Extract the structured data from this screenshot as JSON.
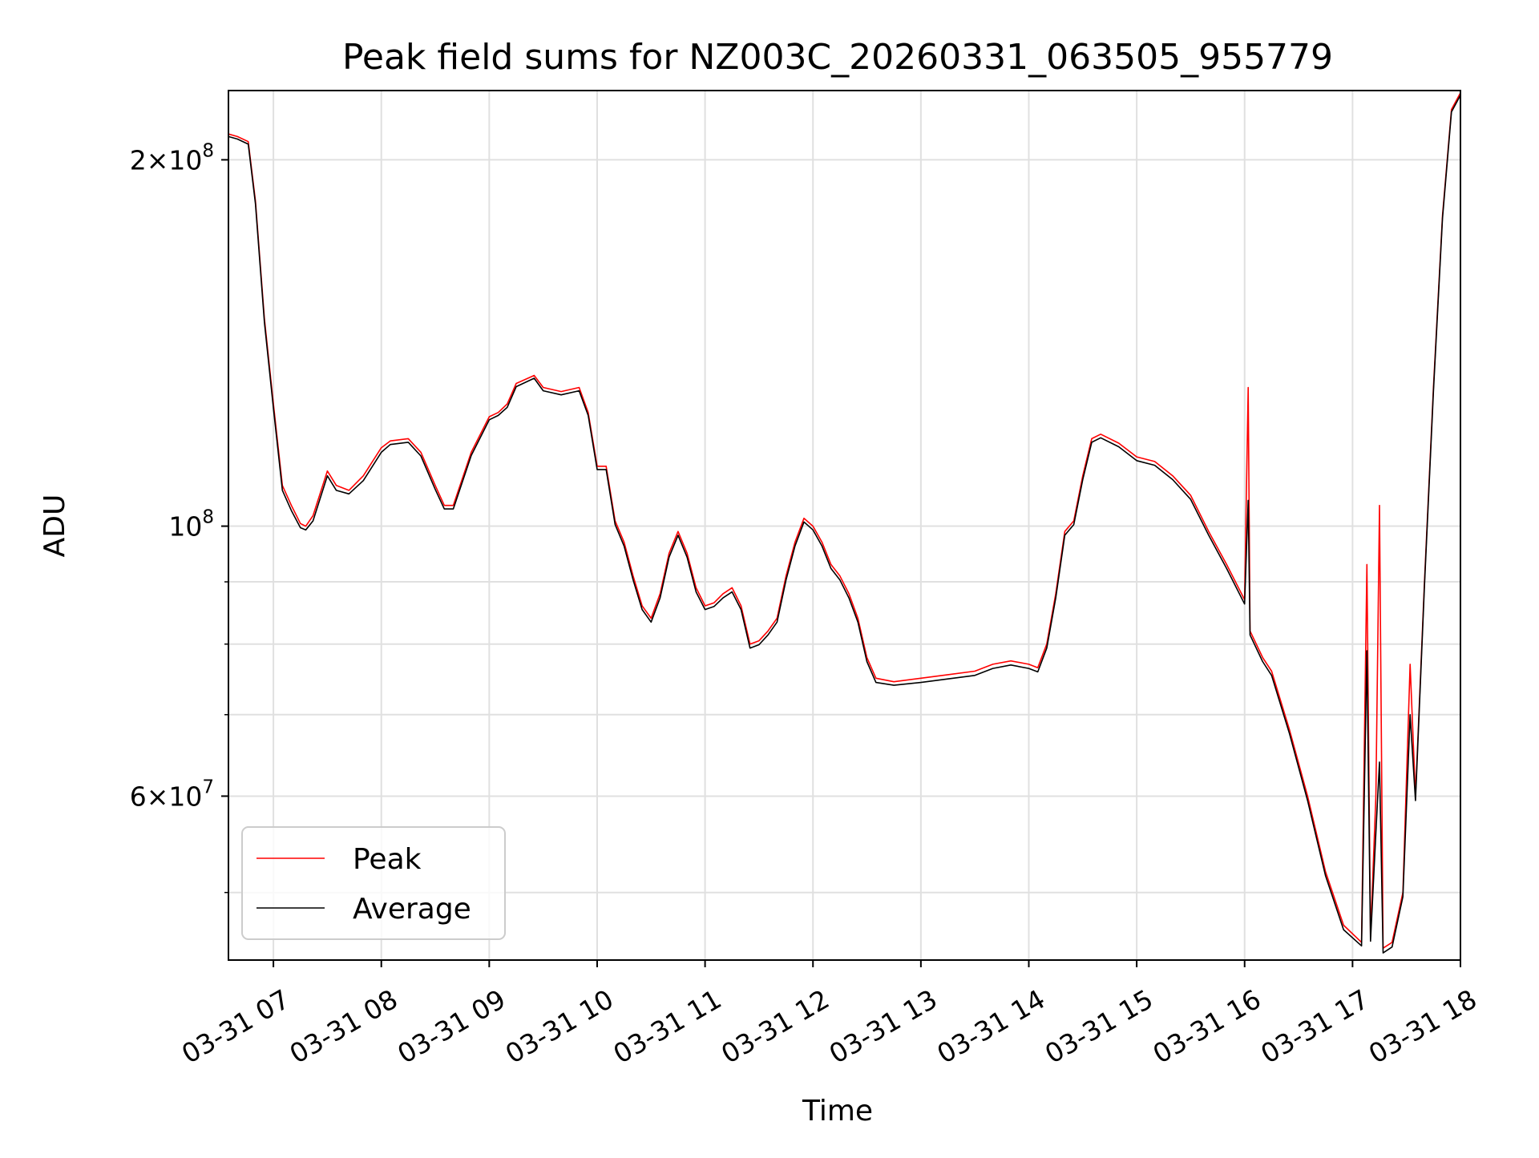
{
  "chart_data": {
    "type": "line",
    "title": "Peak field sums for NZ003C_20260331_063505_955779",
    "xlabel": "Time",
    "ylabel": "ADU",
    "yscale": "log",
    "grid": true,
    "legend_position": "lower-left",
    "xlim": [
      "2026-03-31 06:35",
      "2026-03-31 18:00"
    ],
    "ylim": [
      44000000,
      228000000
    ],
    "x_ticks": [
      {
        "value": "2026-03-31 07:00",
        "label": "03-31 07"
      },
      {
        "value": "2026-03-31 08:00",
        "label": "03-31 08"
      },
      {
        "value": "2026-03-31 09:00",
        "label": "03-31 09"
      },
      {
        "value": "2026-03-31 10:00",
        "label": "03-31 10"
      },
      {
        "value": "2026-03-31 11:00",
        "label": "03-31 11"
      },
      {
        "value": "2026-03-31 12:00",
        "label": "03-31 12"
      },
      {
        "value": "2026-03-31 13:00",
        "label": "03-31 13"
      },
      {
        "value": "2026-03-31 14:00",
        "label": "03-31 14"
      },
      {
        "value": "2026-03-31 15:00",
        "label": "03-31 15"
      },
      {
        "value": "2026-03-31 16:00",
        "label": "03-31 16"
      },
      {
        "value": "2026-03-31 17:00",
        "label": "03-31 17"
      },
      {
        "value": "2026-03-31 18:00",
        "label": "03-31 18"
      }
    ],
    "y_ticks_major": [
      {
        "value": 200000000,
        "mantissa": "2",
        "exponent": "8"
      },
      {
        "value": 100000000,
        "mantissa": "",
        "exponent": "8"
      },
      {
        "value": 60000000,
        "mantissa": "6",
        "exponent": "7"
      }
    ],
    "y_minor_gridlines": [
      50000000,
      70000000,
      80000000,
      90000000
    ],
    "series": [
      {
        "name": "Peak",
        "color": "#ff0000",
        "points": [
          [
            "2026-03-31 06:35",
            210000000
          ],
          [
            "2026-03-31 06:40",
            209000000
          ],
          [
            "2026-03-31 06:46",
            207000000
          ],
          [
            "2026-03-31 06:50",
            185000000
          ],
          [
            "2026-03-31 06:55",
            148000000
          ],
          [
            "2026-03-31 07:00",
            126000000
          ],
          [
            "2026-03-31 07:05",
            108000000
          ],
          [
            "2026-03-31 07:10",
            104000000
          ],
          [
            "2026-03-31 07:15",
            100500000
          ],
          [
            "2026-03-31 07:18",
            100000000
          ],
          [
            "2026-03-31 07:22",
            102000000
          ],
          [
            "2026-03-31 07:30",
            111000000
          ],
          [
            "2026-03-31 07:35",
            108000000
          ],
          [
            "2026-03-31 07:42",
            107000000
          ],
          [
            "2026-03-31 07:50",
            110000000
          ],
          [
            "2026-03-31 08:00",
            116000000
          ],
          [
            "2026-03-31 08:05",
            117500000
          ],
          [
            "2026-03-31 08:15",
            118000000
          ],
          [
            "2026-03-31 08:22",
            115000000
          ],
          [
            "2026-03-31 08:30",
            108000000
          ],
          [
            "2026-03-31 08:35",
            104000000
          ],
          [
            "2026-03-31 08:40",
            104000000
          ],
          [
            "2026-03-31 08:50",
            115000000
          ],
          [
            "2026-03-31 09:00",
            123000000
          ],
          [
            "2026-03-31 09:05",
            124000000
          ],
          [
            "2026-03-31 09:10",
            126000000
          ],
          [
            "2026-03-31 09:15",
            131000000
          ],
          [
            "2026-03-31 09:25",
            133000000
          ],
          [
            "2026-03-31 09:30",
            130000000
          ],
          [
            "2026-03-31 09:40",
            129000000
          ],
          [
            "2026-03-31 09:50",
            130000000
          ],
          [
            "2026-03-31 09:55",
            124000000
          ],
          [
            "2026-03-31 10:00",
            112000000
          ],
          [
            "2026-03-31 10:05",
            112000000
          ],
          [
            "2026-03-31 10:10",
            101000000
          ],
          [
            "2026-03-31 10:15",
            97000000
          ],
          [
            "2026-03-31 10:20",
            91000000
          ],
          [
            "2026-03-31 10:25",
            86000000
          ],
          [
            "2026-03-31 10:30",
            84000000
          ],
          [
            "2026-03-31 10:35",
            88000000
          ],
          [
            "2026-03-31 10:40",
            95000000
          ],
          [
            "2026-03-31 10:45",
            99000000
          ],
          [
            "2026-03-31 10:50",
            95000000
          ],
          [
            "2026-03-31 10:55",
            89000000
          ],
          [
            "2026-03-31 11:00",
            86000000
          ],
          [
            "2026-03-31 11:05",
            86500000
          ],
          [
            "2026-03-31 11:10",
            88000000
          ],
          [
            "2026-03-31 11:15",
            89000000
          ],
          [
            "2026-03-31 11:20",
            86000000
          ],
          [
            "2026-03-31 11:25",
            80000000
          ],
          [
            "2026-03-31 11:30",
            80500000
          ],
          [
            "2026-03-31 11:35",
            82000000
          ],
          [
            "2026-03-31 11:40",
            84000000
          ],
          [
            "2026-03-31 11:45",
            91000000
          ],
          [
            "2026-03-31 11:50",
            97000000
          ],
          [
            "2026-03-31 11:55",
            101500000
          ],
          [
            "2026-03-31 12:00",
            100000000
          ],
          [
            "2026-03-31 12:05",
            97000000
          ],
          [
            "2026-03-31 12:10",
            93000000
          ],
          [
            "2026-03-31 12:15",
            91000000
          ],
          [
            "2026-03-31 12:20",
            88000000
          ],
          [
            "2026-03-31 12:25",
            84000000
          ],
          [
            "2026-03-31 12:30",
            78000000
          ],
          [
            "2026-03-31 12:35",
            75000000
          ],
          [
            "2026-03-31 12:45",
            74500000
          ],
          [
            "2026-03-31 13:00",
            75000000
          ],
          [
            "2026-03-31 13:15",
            75500000
          ],
          [
            "2026-03-31 13:30",
            76000000
          ],
          [
            "2026-03-31 13:40",
            77000000
          ],
          [
            "2026-03-31 13:50",
            77500000
          ],
          [
            "2026-03-31 14:00",
            77000000
          ],
          [
            "2026-03-31 14:05",
            76500000
          ],
          [
            "2026-03-31 14:10",
            80000000
          ],
          [
            "2026-03-31 14:15",
            88000000
          ],
          [
            "2026-03-31 14:20",
            99000000
          ],
          [
            "2026-03-31 14:25",
            101000000
          ],
          [
            "2026-03-31 14:30",
            110000000
          ],
          [
            "2026-03-31 14:35",
            118000000
          ],
          [
            "2026-03-31 14:40",
            119000000
          ],
          [
            "2026-03-31 14:50",
            117000000
          ],
          [
            "2026-03-31 15:00",
            114000000
          ],
          [
            "2026-03-31 15:10",
            113000000
          ],
          [
            "2026-03-31 15:20",
            110000000
          ],
          [
            "2026-03-31 15:30",
            106000000
          ],
          [
            "2026-03-31 15:40",
            99000000
          ],
          [
            "2026-03-31 15:50",
            93000000
          ],
          [
            "2026-03-31 16:00",
            87000000
          ],
          [
            "2026-03-31 16:02",
            130000000
          ],
          [
            "2026-03-31 16:03",
            82000000
          ],
          [
            "2026-03-31 16:10",
            78000000
          ],
          [
            "2026-03-31 16:15",
            76000000
          ],
          [
            "2026-03-31 16:25",
            68000000
          ],
          [
            "2026-03-31 16:35",
            60000000
          ],
          [
            "2026-03-31 16:45",
            52000000
          ],
          [
            "2026-03-31 16:55",
            47000000
          ],
          [
            "2026-03-31 17:05",
            45500000
          ],
          [
            "2026-03-31 17:08",
            93000000
          ],
          [
            "2026-03-31 17:10",
            46000000
          ],
          [
            "2026-03-31 17:13",
            60000000
          ],
          [
            "2026-03-31 17:15",
            104000000
          ],
          [
            "2026-03-31 17:17",
            45000000
          ],
          [
            "2026-03-31 17:22",
            45500000
          ],
          [
            "2026-03-31 17:28",
            50000000
          ],
          [
            "2026-03-31 17:32",
            77000000
          ],
          [
            "2026-03-31 17:35",
            60000000
          ],
          [
            "2026-03-31 17:40",
            90000000
          ],
          [
            "2026-03-31 17:45",
            130000000
          ],
          [
            "2026-03-31 17:50",
            180000000
          ],
          [
            "2026-03-31 17:55",
            220000000
          ],
          [
            "2026-03-31 18:00",
            227000000
          ]
        ]
      },
      {
        "name": "Average",
        "color": "#000000",
        "points": [
          [
            "2026-03-31 06:35",
            209000000
          ],
          [
            "2026-03-31 06:40",
            208000000
          ],
          [
            "2026-03-31 06:46",
            206000000
          ],
          [
            "2026-03-31 06:50",
            184000000
          ],
          [
            "2026-03-31 06:55",
            147000000
          ],
          [
            "2026-03-31 07:00",
            125000000
          ],
          [
            "2026-03-31 07:05",
            107000000
          ],
          [
            "2026-03-31 07:10",
            103000000
          ],
          [
            "2026-03-31 07:15",
            99700000
          ],
          [
            "2026-03-31 07:18",
            99300000
          ],
          [
            "2026-03-31 07:22",
            101000000
          ],
          [
            "2026-03-31 07:30",
            110000000
          ],
          [
            "2026-03-31 07:35",
            107000000
          ],
          [
            "2026-03-31 07:42",
            106300000
          ],
          [
            "2026-03-31 07:50",
            109000000
          ],
          [
            "2026-03-31 08:00",
            115000000
          ],
          [
            "2026-03-31 08:05",
            116700000
          ],
          [
            "2026-03-31 08:15",
            117200000
          ],
          [
            "2026-03-31 08:22",
            114200000
          ],
          [
            "2026-03-31 08:30",
            107200000
          ],
          [
            "2026-03-31 08:35",
            103300000
          ],
          [
            "2026-03-31 08:40",
            103300000
          ],
          [
            "2026-03-31 08:50",
            114300000
          ],
          [
            "2026-03-31 09:00",
            122300000
          ],
          [
            "2026-03-31 09:05",
            123300000
          ],
          [
            "2026-03-31 09:10",
            125200000
          ],
          [
            "2026-03-31 09:15",
            130200000
          ],
          [
            "2026-03-31 09:25",
            132300000
          ],
          [
            "2026-03-31 09:30",
            129200000
          ],
          [
            "2026-03-31 09:40",
            128200000
          ],
          [
            "2026-03-31 09:50",
            129200000
          ],
          [
            "2026-03-31 09:55",
            123300000
          ],
          [
            "2026-03-31 10:00",
            111300000
          ],
          [
            "2026-03-31 10:05",
            111300000
          ],
          [
            "2026-03-31 10:10",
            100300000
          ],
          [
            "2026-03-31 10:15",
            96300000
          ],
          [
            "2026-03-31 10:20",
            90300000
          ],
          [
            "2026-03-31 10:25",
            85400000
          ],
          [
            "2026-03-31 10:30",
            83400000
          ],
          [
            "2026-03-31 10:35",
            87300000
          ],
          [
            "2026-03-31 10:40",
            94300000
          ],
          [
            "2026-03-31 10:45",
            98300000
          ],
          [
            "2026-03-31 10:50",
            94300000
          ],
          [
            "2026-03-31 10:55",
            88300000
          ],
          [
            "2026-03-31 11:00",
            85400000
          ],
          [
            "2026-03-31 11:05",
            85900000
          ],
          [
            "2026-03-31 11:10",
            87300000
          ],
          [
            "2026-03-31 11:15",
            88300000
          ],
          [
            "2026-03-31 11:20",
            85400000
          ],
          [
            "2026-03-31 11:25",
            79400000
          ],
          [
            "2026-03-31 11:30",
            79900000
          ],
          [
            "2026-03-31 11:35",
            81400000
          ],
          [
            "2026-03-31 11:40",
            83400000
          ],
          [
            "2026-03-31 11:45",
            90300000
          ],
          [
            "2026-03-31 11:50",
            96300000
          ],
          [
            "2026-03-31 11:55",
            100800000
          ],
          [
            "2026-03-31 12:00",
            99300000
          ],
          [
            "2026-03-31 12:05",
            96300000
          ],
          [
            "2026-03-31 12:10",
            92300000
          ],
          [
            "2026-03-31 12:15",
            90300000
          ],
          [
            "2026-03-31 12:20",
            87300000
          ],
          [
            "2026-03-31 12:25",
            83400000
          ],
          [
            "2026-03-31 12:30",
            77400000
          ],
          [
            "2026-03-31 12:35",
            74400000
          ],
          [
            "2026-03-31 12:45",
            74000000
          ],
          [
            "2026-03-31 13:00",
            74400000
          ],
          [
            "2026-03-31 13:15",
            74900000
          ],
          [
            "2026-03-31 13:30",
            75400000
          ],
          [
            "2026-03-31 13:40",
            76400000
          ],
          [
            "2026-03-31 13:50",
            76900000
          ],
          [
            "2026-03-31 14:00",
            76400000
          ],
          [
            "2026-03-31 14:05",
            75900000
          ],
          [
            "2026-03-31 14:10",
            79400000
          ],
          [
            "2026-03-31 14:15",
            87300000
          ],
          [
            "2026-03-31 14:20",
            98300000
          ],
          [
            "2026-03-31 14:25",
            100300000
          ],
          [
            "2026-03-31 14:30",
            109200000
          ],
          [
            "2026-03-31 14:35",
            117200000
          ],
          [
            "2026-03-31 14:40",
            118200000
          ],
          [
            "2026-03-31 14:50",
            116200000
          ],
          [
            "2026-03-31 15:00",
            113200000
          ],
          [
            "2026-03-31 15:10",
            112200000
          ],
          [
            "2026-03-31 15:20",
            109200000
          ],
          [
            "2026-03-31 15:30",
            105200000
          ],
          [
            "2026-03-31 15:40",
            98300000
          ],
          [
            "2026-03-31 15:50",
            92300000
          ],
          [
            "2026-03-31 16:00",
            86300000
          ],
          [
            "2026-03-31 16:02",
            105000000
          ],
          [
            "2026-03-31 16:03",
            81400000
          ],
          [
            "2026-03-31 16:10",
            77400000
          ],
          [
            "2026-03-31 16:15",
            75400000
          ],
          [
            "2026-03-31 16:25",
            67500000
          ],
          [
            "2026-03-31 16:35",
            59500000
          ],
          [
            "2026-03-31 16:45",
            51600000
          ],
          [
            "2026-03-31 16:55",
            46600000
          ],
          [
            "2026-03-31 17:05",
            45200000
          ],
          [
            "2026-03-31 17:08",
            79000000
          ],
          [
            "2026-03-31 17:10",
            45600000
          ],
          [
            "2026-03-31 17:13",
            56000000
          ],
          [
            "2026-03-31 17:15",
            64000000
          ],
          [
            "2026-03-31 17:17",
            44600000
          ],
          [
            "2026-03-31 17:22",
            45100000
          ],
          [
            "2026-03-31 17:28",
            49600000
          ],
          [
            "2026-03-31 17:32",
            70000000
          ],
          [
            "2026-03-31 17:35",
            59500000
          ],
          [
            "2026-03-31 17:40",
            89300000
          ],
          [
            "2026-03-31 17:45",
            129000000
          ],
          [
            "2026-03-31 17:50",
            179000000
          ],
          [
            "2026-03-31 17:55",
            219000000
          ],
          [
            "2026-03-31 18:00",
            226000000
          ]
        ]
      }
    ]
  }
}
